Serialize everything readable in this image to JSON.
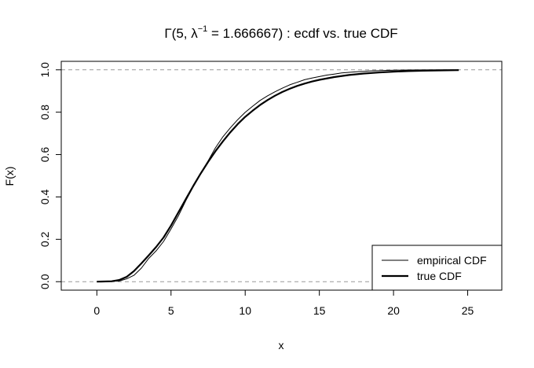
{
  "chart_data": {
    "type": "line",
    "title": {
      "prefix": "Γ(5,  λ",
      "superscript": "−1",
      "suffix": " = 1.666667) :  ecdf vs. true CDF"
    },
    "xlabel": "x",
    "ylabel": "F(x)",
    "xlim": [
      -2.4,
      27.3
    ],
    "ylim": [
      -0.04,
      1.04
    ],
    "x_ticks": [
      0,
      5,
      10,
      15,
      20,
      25
    ],
    "y_ticks": [
      0.0,
      0.2,
      0.4,
      0.6,
      0.8,
      1.0
    ],
    "x_tick_labels": [
      "0",
      "5",
      "10",
      "15",
      "20",
      "25"
    ],
    "y_tick_labels": [
      "0.0",
      "0.2",
      "0.4",
      "0.6",
      "0.8",
      "1.0"
    ],
    "reference_lines": [
      0,
      1
    ],
    "legend_position": "bottom-right",
    "grid": false,
    "series": [
      {
        "name": "empirical CDF",
        "line_width": "thin",
        "x": [
          0.4,
          1.5,
          2.0,
          2.5,
          3.0,
          3.5,
          4.0,
          4.5,
          5.0,
          5.5,
          6.0,
          6.5,
          7.0,
          7.5,
          8.0,
          8.5,
          9.0,
          9.5,
          10.0,
          10.5,
          11.0,
          11.5,
          12.0,
          12.5,
          13.0,
          13.5,
          14.0,
          14.5,
          15.0,
          15.5,
          16.0,
          16.5,
          17.0,
          17.5,
          18.0,
          18.5,
          19.0,
          20.0,
          21.0,
          22.0,
          23.0,
          24.4
        ],
        "y": [
          0.0,
          0.003,
          0.013,
          0.03,
          0.064,
          0.11,
          0.146,
          0.19,
          0.249,
          0.311,
          0.383,
          0.448,
          0.512,
          0.57,
          0.632,
          0.684,
          0.726,
          0.765,
          0.799,
          0.828,
          0.855,
          0.877,
          0.896,
          0.913,
          0.929,
          0.941,
          0.953,
          0.961,
          0.968,
          0.975,
          0.98,
          0.985,
          0.988,
          0.991,
          0.993,
          0.995,
          0.996,
          0.998,
          0.999,
          0.9995,
          1.0,
          1.0
        ]
      },
      {
        "name": "true CDF",
        "line_width": "thick",
        "x": [
          0.0,
          1.0,
          1.5,
          2.0,
          2.5,
          3.0,
          3.5,
          4.0,
          4.5,
          5.0,
          5.5,
          6.0,
          6.5,
          7.0,
          7.5,
          8.0,
          8.5,
          9.0,
          9.5,
          10.0,
          10.5,
          11.0,
          11.5,
          12.0,
          12.5,
          13.0,
          13.5,
          14.0,
          14.5,
          15.0,
          16.0,
          17.0,
          18.0,
          19.0,
          20.0,
          21.0,
          22.0,
          24.4
        ],
        "y": [
          0.0,
          0.0018,
          0.0077,
          0.0224,
          0.05,
          0.0862,
          0.1244,
          0.1641,
          0.2088,
          0.2652,
          0.3274,
          0.3903,
          0.4518,
          0.5107,
          0.5653,
          0.616,
          0.6624,
          0.7054,
          0.7441,
          0.7778,
          0.8069,
          0.8336,
          0.857,
          0.8775,
          0.8953,
          0.9106,
          0.9237,
          0.9349,
          0.9445,
          0.9527,
          0.9658,
          0.9753,
          0.9823,
          0.9873,
          0.9912,
          0.9939,
          0.9959,
          0.9985
        ]
      }
    ]
  }
}
